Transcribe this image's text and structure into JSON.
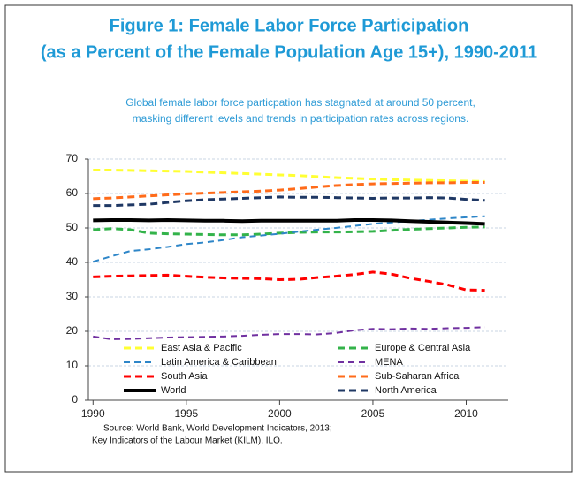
{
  "chart_data": {
    "type": "line",
    "title": [
      "Figure 1: Female Labor Force Participation",
      "(as a Percent of the Female Population Age 15+), 1990-2011"
    ],
    "subtitle": [
      "Global female labor force particpation has stagnated at around 50 percent,",
      "masking different levels and trends in participation rates across regions."
    ],
    "source": [
      "Source:  World Bank, World Development Indicators, 2013;",
      "Key Indicators of the Labour Market (KILM), ILO."
    ],
    "x": [
      1990,
      1991,
      1992,
      1993,
      1994,
      1995,
      1996,
      1997,
      1998,
      1999,
      2000,
      2001,
      2002,
      2003,
      2004,
      2005,
      2006,
      2007,
      2008,
      2009,
      2010,
      2011
    ],
    "xlim": [
      1989.75,
      2012.25
    ],
    "xticks": [
      1990,
      1995,
      2000,
      2005,
      2010
    ],
    "ylim": [
      0,
      70
    ],
    "yticks": [
      0,
      10,
      20,
      30,
      40,
      50,
      60,
      70
    ],
    "grid": true,
    "series": [
      {
        "name": "East Asia & Pacific",
        "color": "#ffff33",
        "dash": "dashed",
        "values": [
          66.8,
          66.8,
          66.7,
          66.6,
          66.5,
          66.4,
          66.2,
          66.0,
          65.8,
          65.6,
          65.4,
          65.2,
          64.9,
          64.6,
          64.4,
          64.2,
          64.0,
          63.9,
          63.8,
          63.7,
          63.6,
          63.5
        ]
      },
      {
        "name": "Europe & Central Asia",
        "color": "#33b34a",
        "dash": "dashed",
        "values": [
          49.5,
          49.8,
          49.5,
          48.5,
          48.3,
          48.2,
          48.1,
          48.0,
          48.0,
          48.2,
          48.5,
          48.7,
          48.8,
          48.8,
          48.9,
          49.0,
          49.3,
          49.6,
          49.8,
          50.0,
          50.2,
          50.3
        ]
      },
      {
        "name": "Latin America & Caribbean",
        "color": "#2e86c8",
        "dash": "dashed-thin",
        "values": [
          40.2,
          41.8,
          43.3,
          43.8,
          44.5,
          45.3,
          45.8,
          46.5,
          47.3,
          47.8,
          48.3,
          48.9,
          49.5,
          50.0,
          50.6,
          51.2,
          51.6,
          52.0,
          52.4,
          52.8,
          53.1,
          53.4
        ]
      },
      {
        "name": "MENA",
        "color": "#7030a0",
        "dash": "dashed-thin",
        "values": [
          18.5,
          17.7,
          17.8,
          18.0,
          18.2,
          18.3,
          18.4,
          18.5,
          18.7,
          19.0,
          19.2,
          19.2,
          19.1,
          19.5,
          20.3,
          20.7,
          20.6,
          20.8,
          20.7,
          20.9,
          21.0,
          21.2
        ]
      },
      {
        "name": "South Asia",
        "color": "#ff0000",
        "dash": "dashed",
        "values": [
          35.8,
          36.0,
          36.1,
          36.2,
          36.3,
          36.0,
          35.7,
          35.5,
          35.4,
          35.3,
          35.0,
          35.1,
          35.6,
          36.0,
          36.5,
          37.2,
          36.6,
          35.4,
          34.5,
          33.5,
          32.0,
          31.9
        ]
      },
      {
        "name": "Sub-Saharan Africa",
        "color": "#ff6b1a",
        "dash": "dashed",
        "values": [
          58.5,
          58.7,
          59.0,
          59.3,
          59.6,
          59.9,
          60.1,
          60.3,
          60.5,
          60.7,
          61.0,
          61.4,
          61.9,
          62.3,
          62.6,
          62.8,
          62.9,
          63.0,
          63.1,
          63.1,
          63.2,
          63.2
        ]
      },
      {
        "name": "World",
        "color": "#000000",
        "dash": "solid",
        "values": [
          52.2,
          52.3,
          52.3,
          52.2,
          52.3,
          52.2,
          52.1,
          52.1,
          52.0,
          52.1,
          52.1,
          52.1,
          52.1,
          52.1,
          52.3,
          52.3,
          52.2,
          52.0,
          51.8,
          51.6,
          51.4,
          51.2
        ]
      },
      {
        "name": "North America",
        "color": "#1f3864",
        "dash": "dashed",
        "values": [
          56.5,
          56.5,
          56.7,
          56.9,
          57.4,
          57.9,
          58.2,
          58.4,
          58.6,
          58.8,
          59.0,
          58.9,
          58.9,
          58.8,
          58.7,
          58.6,
          58.7,
          58.7,
          58.8,
          58.7,
          58.3,
          58.0
        ]
      }
    ]
  }
}
